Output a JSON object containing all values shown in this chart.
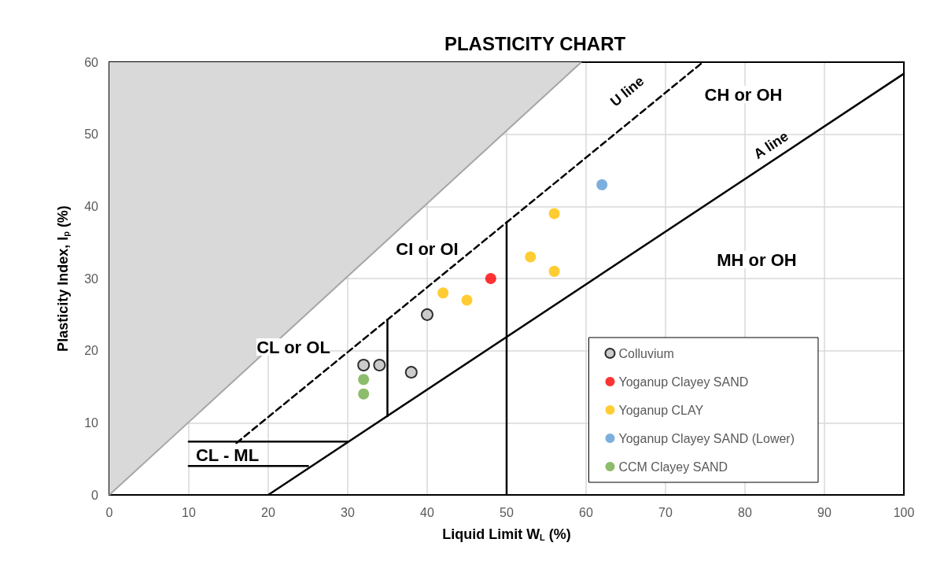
{
  "chart_data": {
    "type": "scatter",
    "title": "PLASTICITY CHART",
    "xlabel": "Liquid Limit W$_{L}$ (%)",
    "ylabel": "Plasticity Index, I$_{p}$ (%)",
    "xlim": [
      0,
      100
    ],
    "xticks": [
      0,
      10,
      20,
      30,
      40,
      50,
      60,
      70,
      80,
      90,
      100
    ],
    "ylim": [
      0,
      60
    ],
    "yticks": [
      0,
      10,
      20,
      30,
      40,
      50,
      60
    ],
    "grid": true,
    "legend": "bottom right",
    "series": [
      {
        "type": "area",
        "x": [
          0,
          59.4
        ],
        "values": [
          0,
          60
        ],
        "color": "#d9d9d9",
        "marker": "none"
      },
      {
        "type": "line",
        "x": [
          20,
          100
        ],
        "values": [
          0,
          58.4
        ],
        "color": "#000000",
        "line_style": "solid",
        "marker": "none"
      },
      {
        "type": "line",
        "x": [
          16,
          74.7
        ],
        "values": [
          7.2,
          60
        ],
        "color": "#000000",
        "line_style": "dashed",
        "marker": "none"
      },
      {
        "type": "line",
        "x": [
          35,
          35
        ],
        "values": [
          10.9,
          24.3
        ],
        "color": "#000000",
        "line_style": "solid",
        "marker": "none"
      },
      {
        "type": "line",
        "x": [
          50,
          50
        ],
        "values": [
          0,
          37.8
        ],
        "color": "#000000",
        "line_style": "solid",
        "marker": "none"
      },
      {
        "type": "line",
        "x": [
          10,
          30
        ],
        "values": [
          7.4,
          7.4
        ],
        "color": "#000000",
        "line_style": "solid",
        "marker": "none"
      },
      {
        "type": "line",
        "x": [
          10,
          25
        ],
        "values": [
          4,
          4
        ],
        "color": "#000000",
        "line_style": "solid",
        "marker": "none"
      },
      {
        "name": "Colluvium",
        "color": "#bfbfbf",
        "x": [
          32,
          34,
          38,
          40
        ],
        "values": [
          18,
          18,
          17,
          25
        ],
        "marker": "circle"
      },
      {
        "name": "Yoganup Clayey SAND",
        "color": "#ff0000",
        "x": [
          48
        ],
        "values": [
          30
        ],
        "marker": "circle"
      },
      {
        "name": "Yoganup CLAY",
        "color": "#ffc000",
        "x": [
          42,
          45,
          53,
          56,
          56
        ],
        "values": [
          28,
          27,
          33,
          39,
          31
        ],
        "marker": "circle"
      },
      {
        "name": "Yoganup Clayey SAND (Lower)",
        "color": "#5b9bd5",
        "x": [
          62
        ],
        "values": [
          43
        ],
        "marker": "circle"
      },
      {
        "name": "CCM Clayey SAND",
        "color": "#70ad47",
        "x": [
          32,
          32
        ],
        "values": [
          16,
          14
        ],
        "marker": "circle"
      }
    ],
    "annotations": [
      "CH or OH",
      "MH or OH",
      "CI or OI",
      "CL or OL",
      "CL - ML",
      "U line",
      "A line"
    ]
  }
}
